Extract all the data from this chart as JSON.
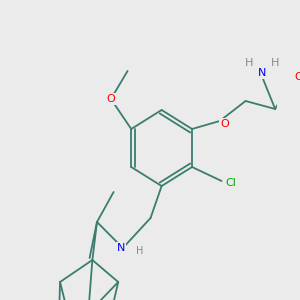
{
  "background_color": "#ebebeb",
  "bond_color": "#3a7d6e",
  "atom_colors": {
    "O": "#ff0000",
    "N": "#0000ff",
    "Cl": "#00aa00",
    "H": "#888888",
    "C": "#3a7d6e"
  },
  "figsize": [
    3.0,
    3.0
  ],
  "dpi": 100
}
